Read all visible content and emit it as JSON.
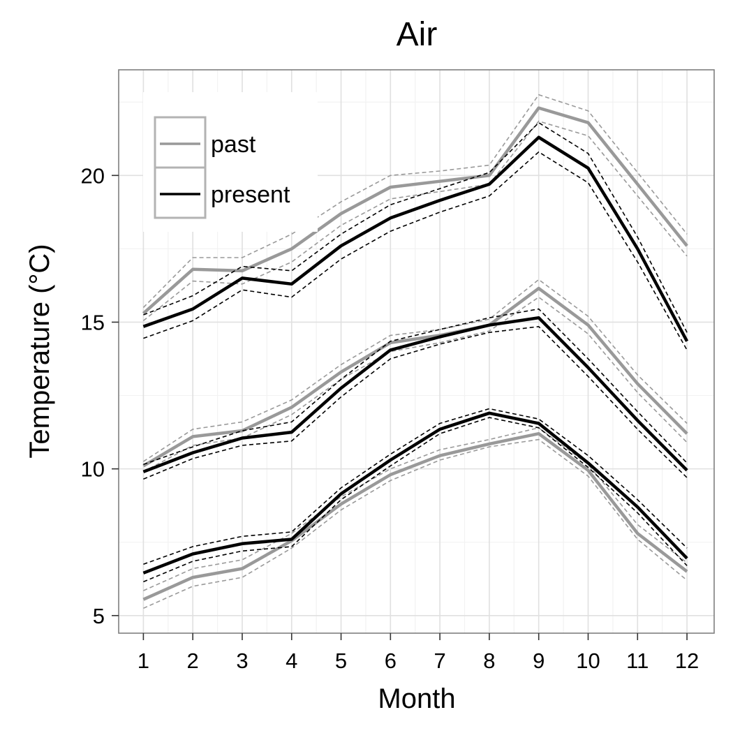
{
  "chart_data": {
    "type": "line",
    "title": "Air",
    "xlabel": "Month",
    "ylabel": "Temperature (°C)",
    "categories": [
      1,
      2,
      3,
      4,
      5,
      6,
      7,
      8,
      9,
      10,
      11,
      12
    ],
    "xlim": [
      0.5,
      12.55
    ],
    "ylim": [
      4.4,
      23.6
    ],
    "yticks": [
      5,
      10,
      15,
      20
    ],
    "grid": true,
    "legend_position": "top-left",
    "legend": [
      {
        "label": "past",
        "color": "#999999"
      },
      {
        "label": "present",
        "color": "#000000"
      }
    ],
    "series": [
      {
        "name": "past",
        "group": "upper",
        "color": "#999999",
        "values": [
          15.3,
          16.8,
          16.75,
          17.5,
          18.7,
          19.6,
          19.8,
          20.0,
          22.3,
          21.8,
          19.7,
          17.6
        ],
        "upper": [
          15.5,
          17.2,
          17.2,
          18.0,
          19.1,
          20.0,
          20.15,
          20.35,
          22.75,
          22.2,
          20.1,
          18.0
        ],
        "lower": [
          15.05,
          16.4,
          16.3,
          17.05,
          18.3,
          19.2,
          19.45,
          19.7,
          21.85,
          21.35,
          19.3,
          17.25
        ]
      },
      {
        "name": "present",
        "group": "upper",
        "color": "#000000",
        "values": [
          14.85,
          15.45,
          16.5,
          16.3,
          17.6,
          18.55,
          19.15,
          19.7,
          21.3,
          20.25,
          17.5,
          14.35
        ],
        "upper": [
          15.25,
          15.9,
          16.9,
          16.75,
          18.0,
          19.0,
          19.55,
          20.1,
          21.8,
          20.75,
          17.9,
          14.65
        ],
        "lower": [
          14.45,
          15.05,
          16.1,
          15.85,
          17.15,
          18.1,
          18.75,
          19.3,
          20.8,
          19.75,
          17.05,
          14.05
        ]
      },
      {
        "name": "past",
        "group": "middle",
        "color": "#999999",
        "values": [
          10.1,
          11.1,
          11.3,
          12.1,
          13.3,
          14.3,
          14.55,
          14.9,
          16.15,
          14.9,
          12.9,
          11.2
        ],
        "upper": [
          10.25,
          11.35,
          11.6,
          12.35,
          13.55,
          14.55,
          14.75,
          15.1,
          16.45,
          15.2,
          13.2,
          11.55
        ],
        "lower": [
          9.9,
          10.8,
          11.05,
          11.85,
          13.05,
          14.0,
          14.3,
          14.7,
          15.85,
          14.6,
          12.6,
          10.9
        ]
      },
      {
        "name": "present",
        "group": "middle",
        "color": "#000000",
        "values": [
          9.9,
          10.55,
          11.05,
          11.25,
          12.75,
          14.05,
          14.5,
          14.9,
          15.15,
          13.45,
          11.65,
          9.95
        ],
        "upper": [
          10.15,
          10.75,
          11.3,
          11.6,
          13.05,
          14.35,
          14.75,
          15.15,
          15.45,
          13.75,
          11.95,
          10.2
        ],
        "lower": [
          9.65,
          10.35,
          10.8,
          10.95,
          12.45,
          13.75,
          14.25,
          14.65,
          14.85,
          13.15,
          11.35,
          9.7
        ]
      },
      {
        "name": "past",
        "group": "lower",
        "color": "#999999",
        "values": [
          5.55,
          6.3,
          6.6,
          7.55,
          8.8,
          9.8,
          10.45,
          10.85,
          11.2,
          9.95,
          7.8,
          6.5
        ],
        "upper": [
          5.85,
          6.6,
          6.9,
          7.8,
          9.05,
          10.0,
          10.65,
          11.0,
          11.4,
          10.15,
          8.1,
          6.8
        ],
        "lower": [
          5.25,
          6.0,
          6.3,
          7.3,
          8.6,
          9.6,
          10.3,
          10.75,
          11.0,
          9.75,
          7.6,
          6.2
        ]
      },
      {
        "name": "present",
        "group": "lower",
        "color": "#000000",
        "values": [
          6.45,
          7.1,
          7.45,
          7.6,
          9.15,
          10.3,
          11.35,
          11.9,
          11.55,
          10.2,
          8.7,
          6.95
        ],
        "upper": [
          6.75,
          7.35,
          7.7,
          7.85,
          9.35,
          10.5,
          11.55,
          12.05,
          11.7,
          10.45,
          8.95,
          7.3
        ],
        "lower": [
          6.15,
          6.85,
          7.2,
          7.35,
          8.95,
          10.1,
          11.2,
          11.75,
          11.4,
          10.05,
          8.5,
          6.7
        ]
      }
    ]
  }
}
